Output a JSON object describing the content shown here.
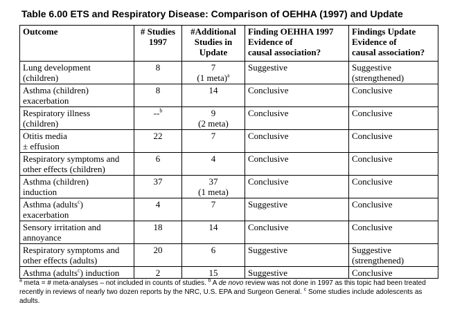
{
  "title": "Table 6.00 ETS and Respiratory Disease: Comparison of OEHHA (1997) and Update",
  "table": {
    "header": [
      [
        "Outcome"
      ],
      [
        "# Studies",
        "1997"
      ],
      [
        "#Additional",
        "Studies in",
        "Update"
      ],
      [
        "Finding OEHHA 1997",
        "Evidence of",
        "causal association?"
      ],
      [
        "Findings Update",
        "Evidence of",
        "causal association?"
      ]
    ],
    "rows": [
      [
        [
          "Lung development",
          "(children)"
        ],
        [
          "8"
        ],
        [
          "7",
          {
            "parts": [
              "(1 meta)"
            ],
            "sup": "a"
          }
        ],
        [
          "Suggestive"
        ],
        [
          "Suggestive",
          "(strengthened)"
        ]
      ],
      [
        [
          "Asthma (children)",
          "exacerbation"
        ],
        [
          "8"
        ],
        [
          "14"
        ],
        [
          "Conclusive"
        ],
        [
          "Conclusive"
        ]
      ],
      [
        [
          "Respiratory illness",
          "(children)"
        ],
        [
          {
            "parts": [
              "--"
            ],
            "sup": "b"
          }
        ],
        [
          "9",
          "(2 meta)"
        ],
        [
          "Conclusive"
        ],
        [
          "Conclusive"
        ]
      ],
      [
        [
          "Otitis media",
          "± effusion"
        ],
        [
          "22"
        ],
        [
          "7"
        ],
        [
          "Conclusive"
        ],
        [
          "Conclusive"
        ]
      ],
      [
        [
          "Respiratory symptoms and",
          "other effects (children)"
        ],
        [
          "6"
        ],
        [
          "4"
        ],
        [
          "Conclusive"
        ],
        [
          "Conclusive"
        ]
      ],
      [
        [
          "Asthma (children)",
          "induction"
        ],
        [
          "37"
        ],
        [
          "37",
          "(1 meta)"
        ],
        [
          "Conclusive"
        ],
        [
          "Conclusive"
        ]
      ],
      [
        [
          {
            "parts": [
              "Asthma (adults",
              ")"
            ],
            "sup": "c"
          },
          "exacerbation"
        ],
        [
          "4"
        ],
        [
          "7"
        ],
        [
          "Suggestive"
        ],
        [
          "Conclusive"
        ]
      ],
      [
        [
          "Sensory irritation and",
          "annoyance"
        ],
        [
          "18"
        ],
        [
          "14"
        ],
        [
          "Conclusive"
        ],
        [
          "Conclusive"
        ]
      ],
      [
        [
          "Respiratory symptoms and",
          "other effects (adults)"
        ],
        [
          "20"
        ],
        [
          "6"
        ],
        [
          "Suggestive"
        ],
        [
          "Suggestive",
          "(strengthened)"
        ]
      ],
      [
        [
          {
            "parts": [
              "Asthma (adults",
              ") induction"
            ],
            "sup": "c"
          }
        ],
        [
          "2"
        ],
        [
          "15"
        ],
        [
          "Suggestive"
        ],
        [
          "Conclusive"
        ]
      ]
    ]
  },
  "footnote": [
    {
      "sup": "a"
    },
    {
      "text": " meta = # meta-analyses – not included in counts of studies.  "
    },
    {
      "sup": "b"
    },
    {
      "text": " A "
    },
    {
      "em": "de novo"
    },
    {
      "text": " review was not done in 1997 as this topic had been treated recently in reviews of nearly two dozen reports by the NRC, U.S. EPA and Surgeon General. "
    },
    {
      "sup": "c"
    },
    {
      "text": " Some studies include adolescents as adults."
    }
  ]
}
